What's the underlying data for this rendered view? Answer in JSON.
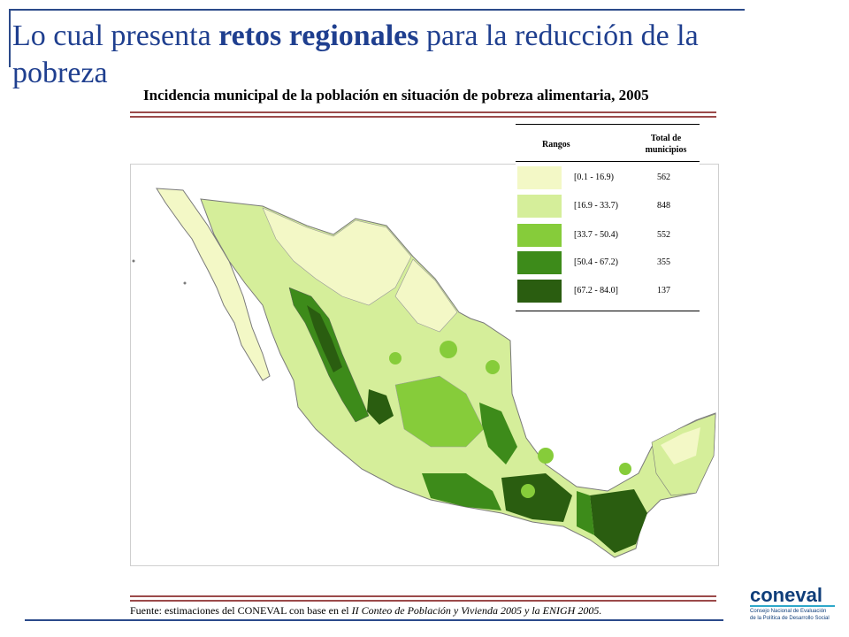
{
  "slide": {
    "title_before": "Lo cual presenta ",
    "title_bold": "retos regionales",
    "title_after": " para la reducción de la pobreza"
  },
  "map": {
    "title": "Incidencia municipal de la población en situación de pobreza alimentaria, 2005",
    "legend": {
      "header_ranges": "Rangos",
      "header_total_line1": "Total de",
      "header_total_line2": "municipios",
      "items": [
        {
          "range": "[0.1 - 16.9)",
          "count": "562",
          "color": "#f3f8c6"
        },
        {
          "range": "[16.9 - 33.7)",
          "count": "848",
          "color": "#d5ee9a"
        },
        {
          "range": "[33.7 - 50.4)",
          "count": "552",
          "color": "#86cc3a"
        },
        {
          "range": "[50.4 - 67.2)",
          "count": "355",
          "color": "#3d8b1a"
        },
        {
          "range": "[67.2 - 84.0]",
          "count": "137",
          "color": "#2a5d10"
        }
      ]
    }
  },
  "source": {
    "prefix": "Fuente: estimaciones del CONEVAL con base en el ",
    "italic": "II Conteo de Población y Vivienda 2005 y la ENIGH 2005."
  },
  "logo": {
    "word": "coneval",
    "line1": "Consejo Nacional de Evaluación",
    "line2": "de la Política de Desarrollo Social"
  },
  "colors": {
    "accent_blue": "#1f3f8f",
    "rule_red": "#9b4a4a"
  }
}
